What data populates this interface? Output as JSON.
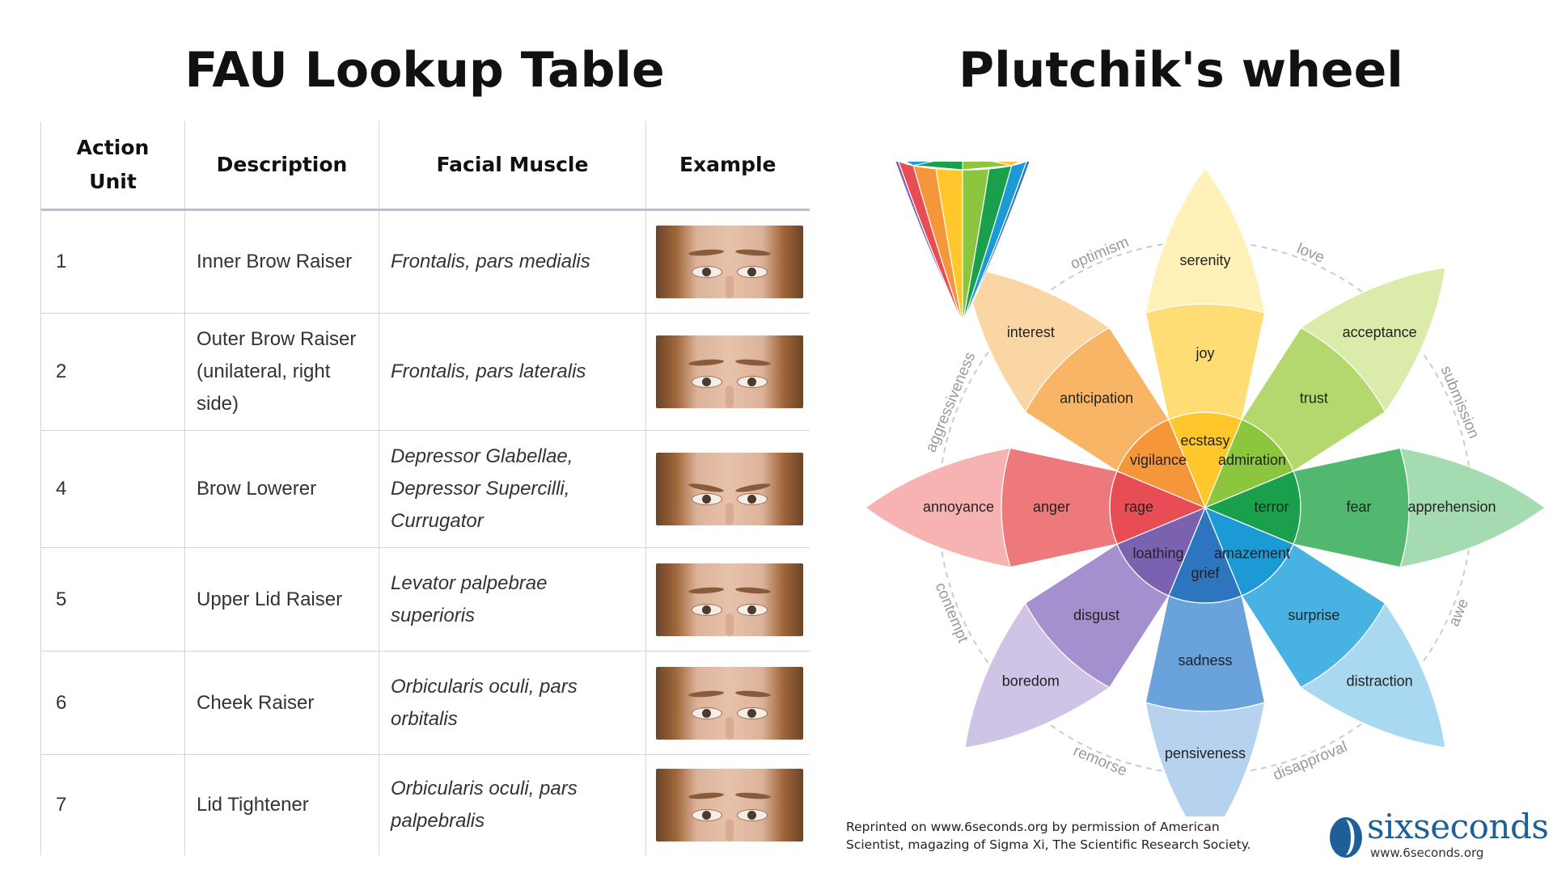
{
  "fau": {
    "title": "FAU Lookup Table",
    "headers": [
      "Action\nUnit",
      "Description",
      "Facial Muscle",
      "Example"
    ],
    "rows": [
      {
        "au": "1",
        "description": "Inner Brow Raiser",
        "muscle": "Frontalis, pars medialis"
      },
      {
        "au": "2",
        "description": "Outer Brow Raiser (unilateral, right side)",
        "muscle": "Frontalis, pars lateralis"
      },
      {
        "au": "4",
        "description": "Brow Lowerer",
        "muscle": "Depressor Glabellae, Depressor Supercilli, Currugator"
      },
      {
        "au": "5",
        "description": "Upper Lid Raiser",
        "muscle": "Levator palpebrae superioris"
      },
      {
        "au": "6",
        "description": "Cheek Raiser",
        "muscle": "Orbicularis oculi, pars orbitalis"
      },
      {
        "au": "7",
        "description": "Lid Tightener",
        "muscle": "Orbicularis oculi, pars palpebralis"
      }
    ]
  },
  "wheel": {
    "title": "Plutchik's wheel",
    "petals": [
      {
        "inner": "ecstasy",
        "middle": "joy",
        "outer": "serenity",
        "colors": [
          "#ffc72c",
          "#ffdd75",
          "#fff1b8"
        ]
      },
      {
        "inner": "admiration",
        "middle": "trust",
        "outer": "acceptance",
        "colors": [
          "#8cc63f",
          "#b5d86e",
          "#dbeba9"
        ]
      },
      {
        "inner": "terror",
        "middle": "fear",
        "outer": "apprehension",
        "colors": [
          "#1aa04d",
          "#52b870",
          "#a5dbb0"
        ]
      },
      {
        "inner": "amazement",
        "middle": "surprise",
        "outer": "distraction",
        "colors": [
          "#1b9ad6",
          "#48b3e3",
          "#a9d9f0"
        ]
      },
      {
        "inner": "grief",
        "middle": "sadness",
        "outer": "pensiveness",
        "colors": [
          "#2e75c0",
          "#6aa2dc",
          "#b6d2ef"
        ]
      },
      {
        "inner": "loathing",
        "middle": "disgust",
        "outer": "boredom",
        "colors": [
          "#7b62b0",
          "#a590cf",
          "#cfc3e6"
        ]
      },
      {
        "inner": "rage",
        "middle": "anger",
        "outer": "annoyance",
        "colors": [
          "#e84c55",
          "#ee797c",
          "#f6b3b1"
        ]
      },
      {
        "inner": "vigilance",
        "middle": "anticipation",
        "outer": "interest",
        "colors": [
          "#f5963a",
          "#f8b566",
          "#fbd6a5"
        ]
      }
    ],
    "dyads": [
      "love",
      "submission",
      "awe",
      "disapproval",
      "remorse",
      "contempt",
      "aggressiveness",
      "optimism"
    ],
    "cone_colors": [
      "#ffc72c",
      "#8cc63f",
      "#1aa04d",
      "#1b9ad6",
      "#2e75c0",
      "#7b62b0",
      "#e84c55",
      "#f5963a"
    ],
    "credit_line1": "Reprinted on www.6seconds.org by permission of American",
    "credit_line2": "Scientist, magazing of Sigma Xi, The Scientific Research Society.",
    "logo_name": "sixseconds",
    "logo_url": "www.6seconds.org",
    "logo_color": "#1f5f99"
  }
}
